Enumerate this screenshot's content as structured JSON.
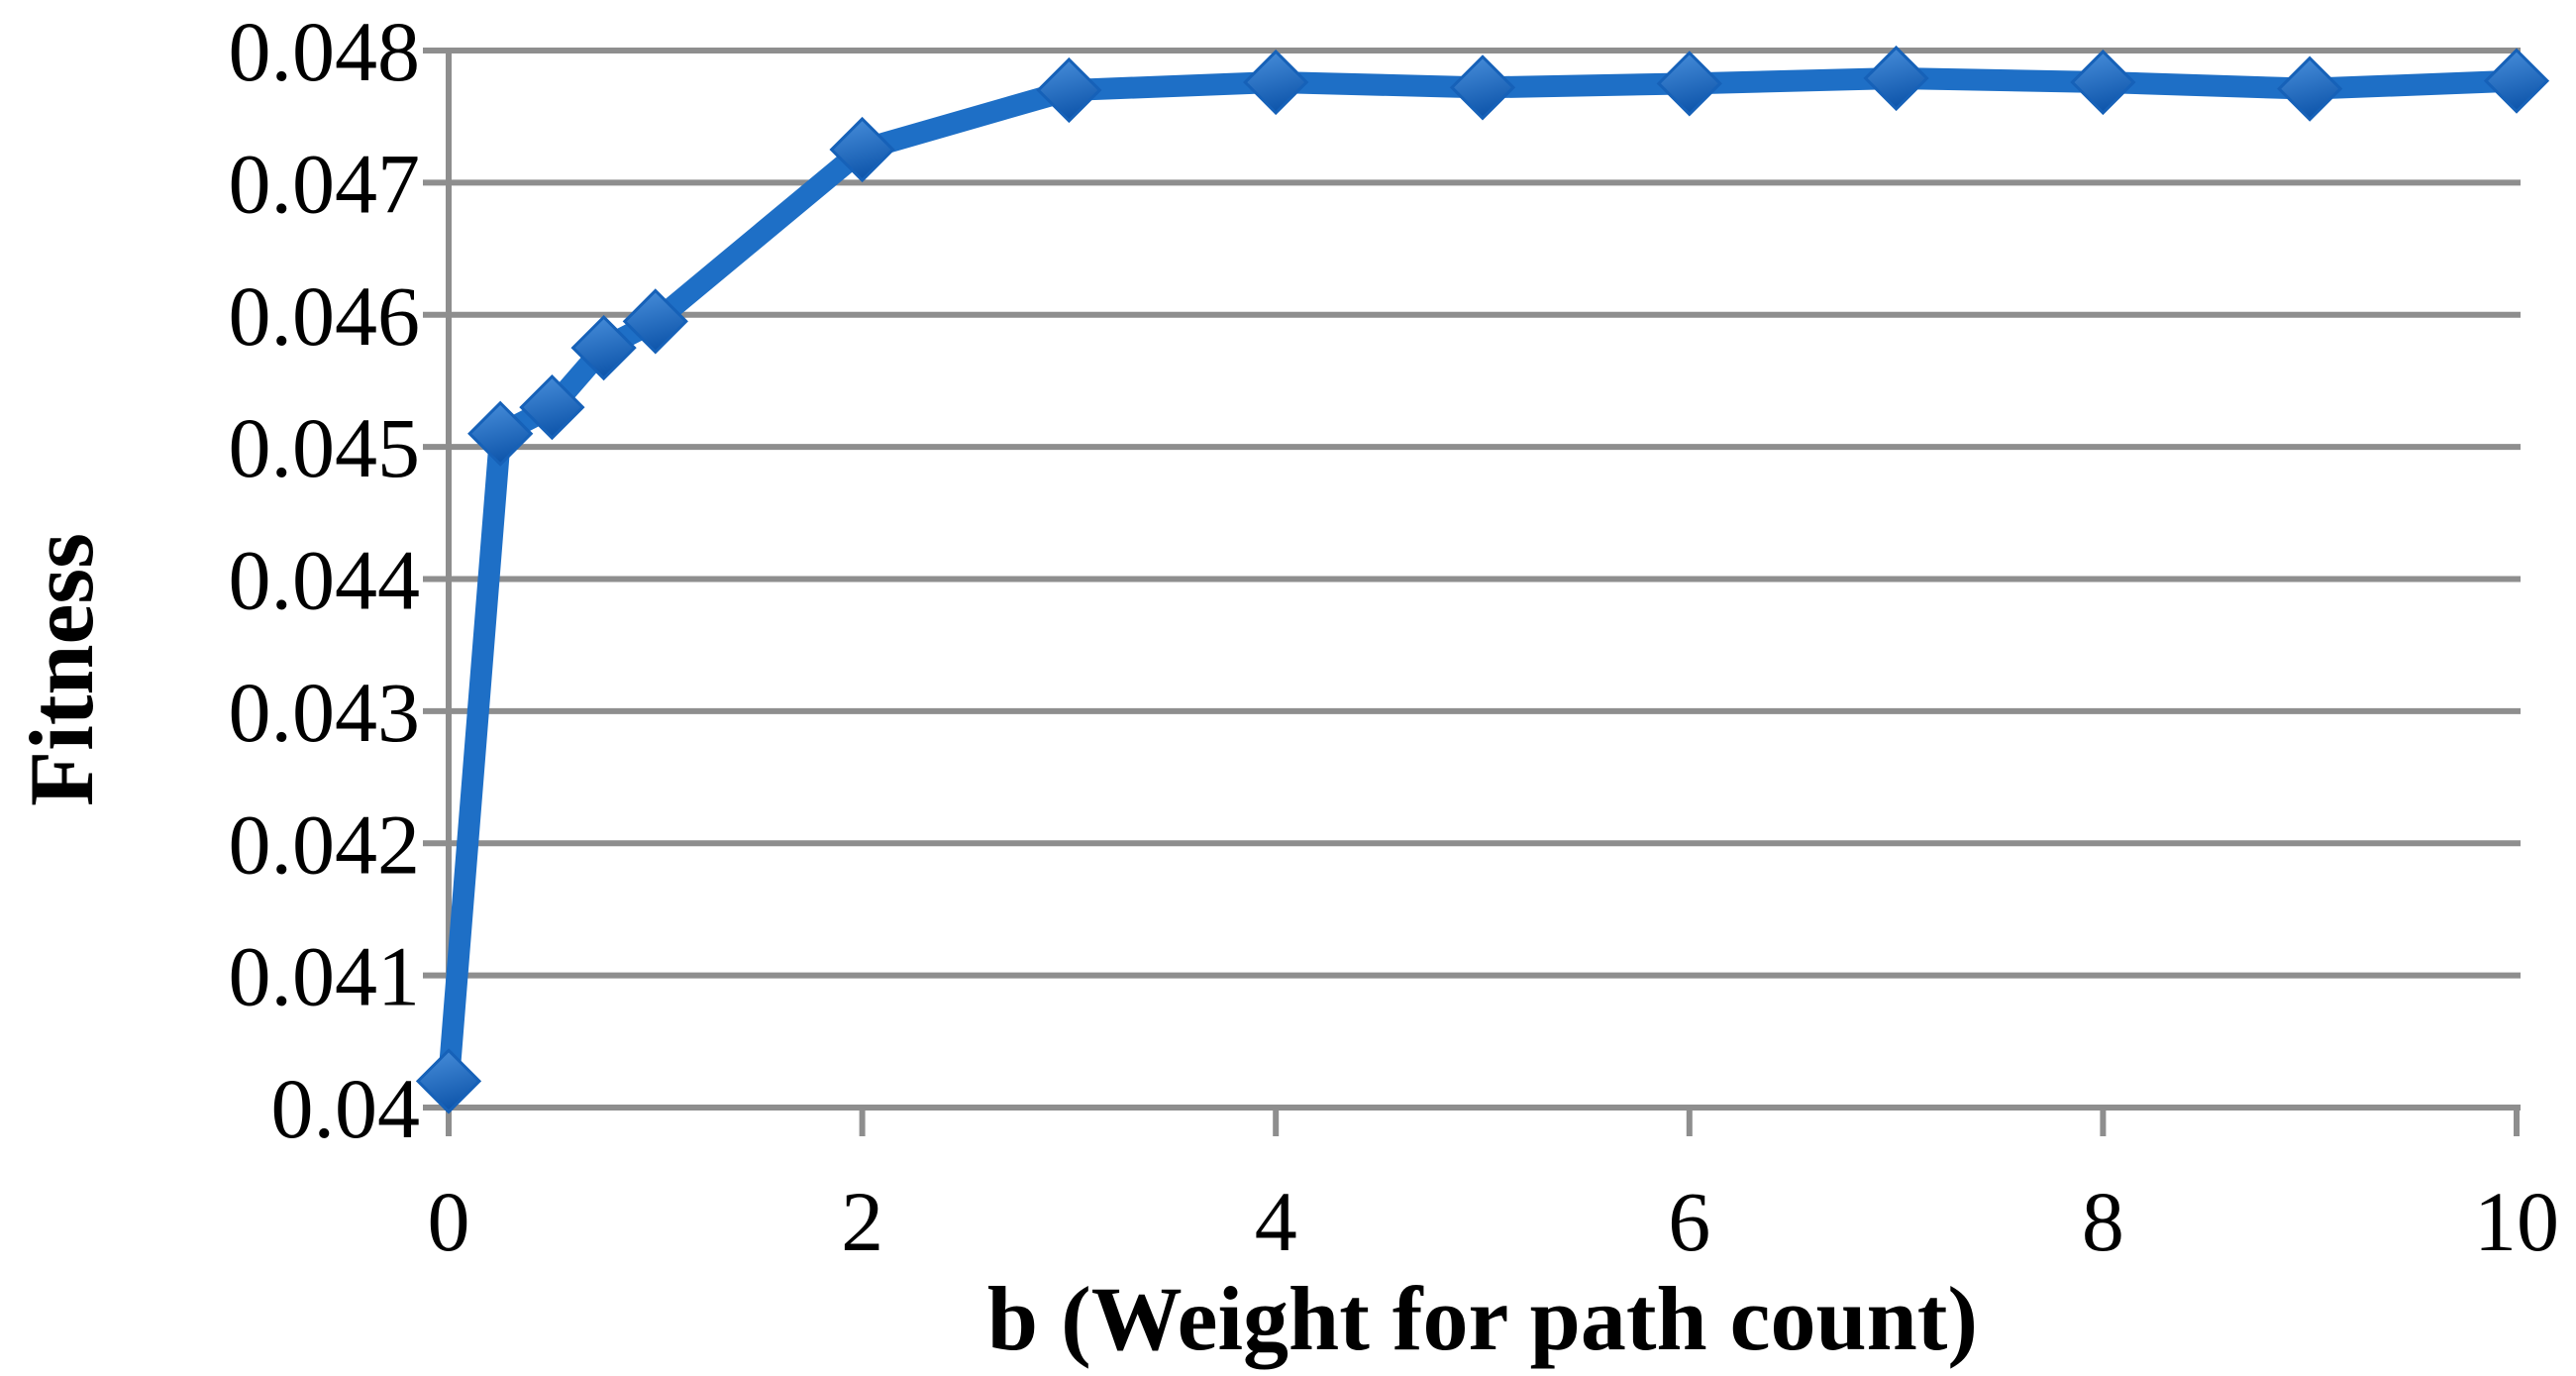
{
  "chart_data": {
    "type": "line",
    "title": "",
    "xlabel": "b (Weight for path count)",
    "ylabel": "Fitness",
    "series": [
      {
        "name": "Fitness",
        "x": [
          0,
          0.25,
          0.5,
          0.75,
          1,
          2,
          3,
          4,
          5,
          6,
          7,
          8,
          9,
          10
        ],
        "y": [
          0.0402,
          0.0451,
          0.0453,
          0.04575,
          0.04595,
          0.04725,
          0.0477,
          0.04776,
          0.04772,
          0.04775,
          0.04779,
          0.04776,
          0.04771,
          0.04777
        ]
      }
    ],
    "xlim": [
      0,
      10
    ],
    "ylim": [
      0.04,
      0.048
    ],
    "x_ticks": [
      0,
      2,
      4,
      6,
      8,
      10
    ],
    "x_tick_labels": [
      "0",
      "2",
      "4",
      "6",
      "8",
      "10"
    ],
    "y_ticks": [
      0.04,
      0.041,
      0.042,
      0.043,
      0.044,
      0.045,
      0.046,
      0.047,
      0.048
    ],
    "y_tick_labels": [
      "0.04",
      "0.041",
      "0.042",
      "0.043",
      "0.044",
      "0.045",
      "0.046",
      "0.047",
      "0.048"
    ],
    "grid": "horizontal",
    "legend": "none",
    "marker": "diamond",
    "colors": {
      "line": "#1E6FC6",
      "marker_light": "#4A90DC",
      "marker_dark": "#1057AC",
      "marker_border": "#1661B8",
      "gridline": "#8E8E8E",
      "text": "#000000",
      "background": "#FFFFFF"
    }
  }
}
